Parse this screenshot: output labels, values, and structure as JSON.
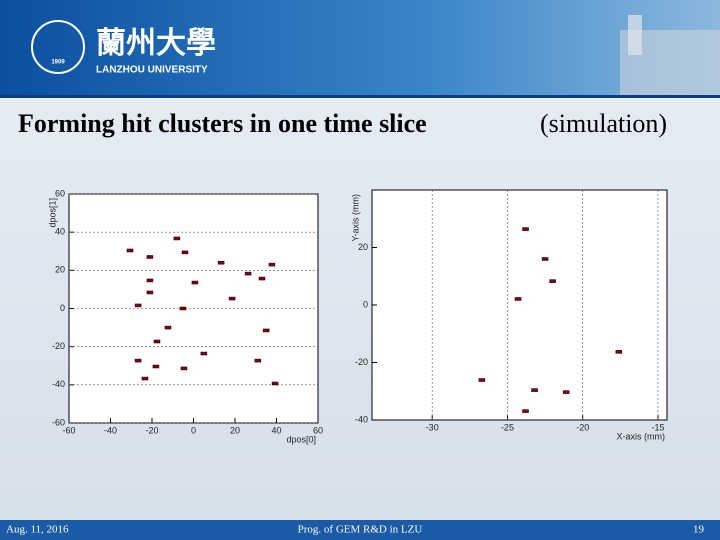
{
  "header": {
    "logo_year": "1909",
    "name_cn": "蘭州大學",
    "name_en": "LANZHOU UNIVERSITY"
  },
  "title": {
    "main": "Forming hit clusters in one time slice",
    "note": "(simulation)"
  },
  "footer": {
    "date": "Aug. 11, 2016",
    "center": "Prog. of GEM R&D in LZU",
    "page": "19"
  },
  "chart_data": [
    {
      "type": "scatter",
      "xlabel": "dpos[0]",
      "ylabel": "dpos[1]",
      "xlim": [
        -60,
        60
      ],
      "ylim": [
        -60,
        60
      ],
      "xticks": [
        -60,
        -40,
        -20,
        0,
        20,
        40,
        60
      ],
      "yticks": [
        -60,
        -40,
        -20,
        0,
        20,
        40,
        60
      ],
      "grid": "y",
      "x": [
        -8,
        -4.1,
        -30.6,
        -21,
        13.3,
        37.8,
        33,
        26.3,
        0.7,
        -21,
        -21,
        18.6,
        -26.7,
        -5.1,
        -12.3,
        -17.6,
        35,
        5,
        -26.7,
        -18.1,
        -4.6,
        31,
        -23.4,
        39.3
      ],
      "series": [
        {
          "color": "#8b0000",
          "values": [
            36.7,
            29.4,
            30.4,
            27,
            24,
            23,
            15.7,
            18.3,
            13.6,
            14.7,
            8.4,
            5.2,
            1.6,
            0,
            -10,
            -17.3,
            -11.5,
            -23.6,
            -27.3,
            -30.4,
            -31.4,
            -27.3,
            -36.7,
            -39.3
          ]
        }
      ]
    },
    {
      "type": "scatter",
      "xlabel": "X-axis (mm)",
      "ylabel": "Y-axis (mm)",
      "xlim": [
        -34,
        -14.4
      ],
      "ylim": [
        -40,
        40
      ],
      "xticks": [
        -30,
        -25,
        -20,
        -15
      ],
      "yticks": [
        -40,
        -20,
        0,
        20
      ],
      "grid": "x",
      "x": [
        -23.8,
        -22.5,
        -22,
        -24.3,
        -17.6,
        -26.7,
        -23.2,
        -21.1,
        -23.8
      ],
      "series": [
        {
          "color": "#8b0000",
          "values": [
            26.4,
            16,
            8.3,
            2.1,
            -16.3,
            -26.1,
            -29.6,
            -30.3,
            -36.9
          ]
        }
      ]
    }
  ]
}
